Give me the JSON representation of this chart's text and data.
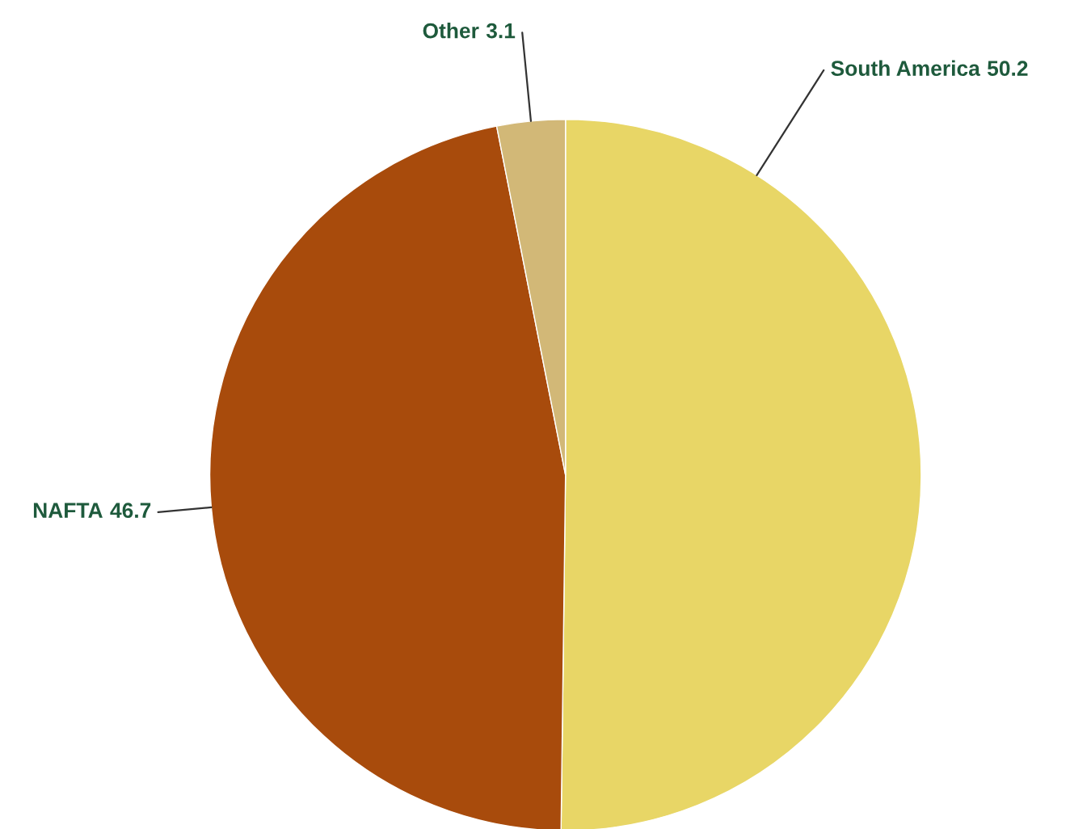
{
  "chart_data": {
    "type": "pie",
    "categories": [
      "South America",
      "NAFTA",
      "Other"
    ],
    "values": [
      50.2,
      46.7,
      3.1
    ],
    "colors": [
      "#e8d666",
      "#a84b0c",
      "#d2b877"
    ],
    "data_labels": true
  }
}
